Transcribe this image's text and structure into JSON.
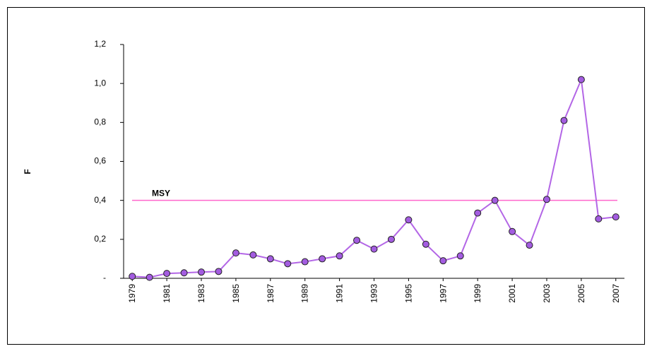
{
  "chart_data": {
    "type": "line",
    "ylabel": "F",
    "categories": [
      "1979",
      null,
      "1981",
      null,
      "1983",
      null,
      "1985",
      null,
      "1987",
      null,
      "1989",
      null,
      "1991",
      null,
      "1993",
      null,
      "1995",
      null,
      "1997",
      null,
      "1999",
      null,
      "2001",
      null,
      "2003",
      null,
      "2005",
      null,
      "2007"
    ],
    "series": [
      {
        "name": "F",
        "color": "#b366e6",
        "marker_color": "#a35ce0",
        "values": [
          0.01,
          0.005,
          0.025,
          0.028,
          0.032,
          0.035,
          0.13,
          0.12,
          0.1,
          0.075,
          0.085,
          0.1,
          0.115,
          0.195,
          0.15,
          0.2,
          0.3,
          0.175,
          0.09,
          0.115,
          0.335,
          0.4,
          0.24,
          0.17,
          0.405,
          0.81,
          1.02,
          0.305,
          0.315
        ]
      }
    ],
    "annotations": [
      {
        "text": "MSY",
        "value": 0.4,
        "color": "#ff66cc",
        "text_color": "#ff0000"
      }
    ],
    "ylim": [
      0,
      1.2
    ],
    "yticks": [
      {
        "value": 0,
        "label": "-"
      },
      {
        "value": 0.2,
        "label": "0,2"
      },
      {
        "value": 0.4,
        "label": "0,4"
      },
      {
        "value": 0.6,
        "label": "0,6"
      },
      {
        "value": 0.8,
        "label": "0,8"
      },
      {
        "value": 1.0,
        "label": "1,0"
      },
      {
        "value": 1.2,
        "label": "1,2"
      }
    ],
    "grid": false
  }
}
